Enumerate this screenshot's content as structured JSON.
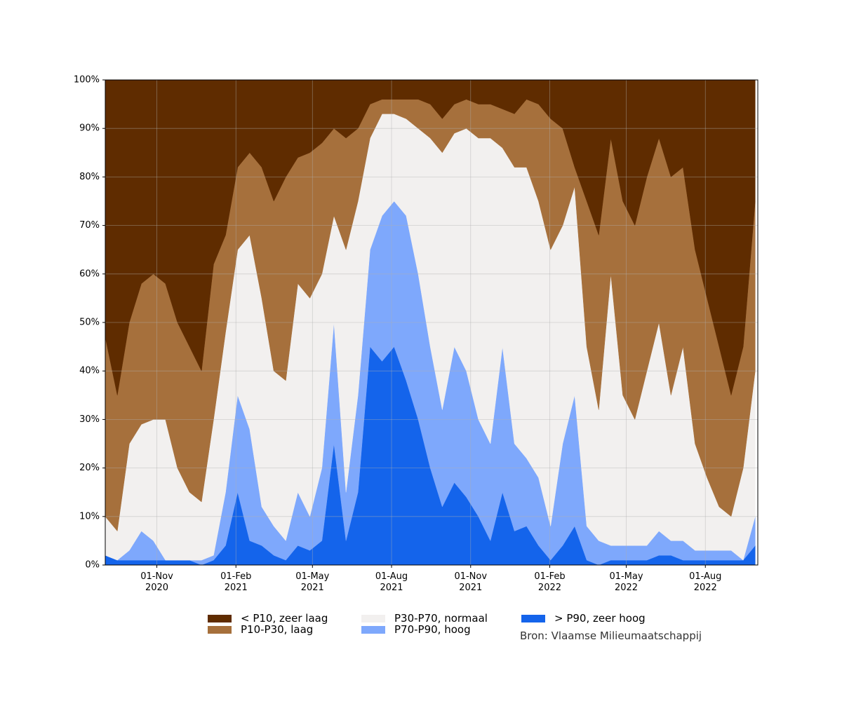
{
  "chart_data": {
    "type": "stacked_area",
    "x": [
      "2020-09-02",
      "2020-09-16",
      "2020-09-30",
      "2020-10-14",
      "2020-10-28",
      "2020-11-11",
      "2020-11-25",
      "2020-12-09",
      "2020-12-23",
      "2021-01-06",
      "2021-01-20",
      "2021-02-03",
      "2021-02-17",
      "2021-03-03",
      "2021-03-17",
      "2021-03-31",
      "2021-04-14",
      "2021-04-28",
      "2021-05-12",
      "2021-05-26",
      "2021-06-09",
      "2021-06-23",
      "2021-07-07",
      "2021-07-21",
      "2021-08-04",
      "2021-08-18",
      "2021-09-01",
      "2021-09-15",
      "2021-09-29",
      "2021-10-13",
      "2021-10-27",
      "2021-11-10",
      "2021-11-24",
      "2021-12-08",
      "2021-12-22",
      "2022-01-05",
      "2022-01-19",
      "2022-02-02",
      "2022-02-16",
      "2022-03-02",
      "2022-03-16",
      "2022-03-30",
      "2022-04-13",
      "2022-04-27",
      "2022-05-11",
      "2022-05-25",
      "2022-06-08",
      "2022-06-22",
      "2022-07-06",
      "2022-07-20",
      "2022-08-03",
      "2022-08-17",
      "2022-08-31",
      "2022-09-14",
      "2022-09-28"
    ],
    "series": [
      {
        "name": "< P10, zeer laag",
        "color": "#5f2c00",
        "values": [
          53,
          65,
          50,
          42,
          40,
          42,
          50,
          55,
          60,
          38,
          32,
          18,
          15,
          18,
          25,
          20,
          16,
          15,
          13,
          10,
          12,
          10,
          5,
          4,
          4,
          4,
          4,
          5,
          8,
          5,
          4,
          5,
          5,
          6,
          7,
          4,
          5,
          8,
          10,
          18,
          25,
          32,
          12,
          25,
          30,
          20,
          12,
          20,
          18,
          35,
          45,
          55,
          65,
          55,
          25
        ]
      },
      {
        "name": "P10-P30, laag",
        "color": "#a6703c",
        "values": [
          37,
          28,
          25,
          29,
          30,
          28,
          30,
          30,
          27,
          32,
          20,
          17,
          17,
          27,
          35,
          42,
          26,
          30,
          27,
          18,
          23,
          15,
          7,
          3,
          3,
          4,
          6,
          7,
          7,
          6,
          6,
          7,
          7,
          8,
          11,
          14,
          20,
          27,
          20,
          4,
          30,
          36,
          28,
          40,
          40,
          40,
          38,
          45,
          37,
          40,
          37,
          33,
          25,
          25,
          35
        ]
      },
      {
        "name": "P30-P70, normaal",
        "color": "#f2f0ef",
        "values": [
          8,
          6,
          22,
          22,
          25,
          29,
          19,
          14,
          12,
          28,
          33,
          30,
          40,
          43,
          32,
          33,
          43,
          45,
          40,
          22,
          50,
          40,
          23,
          21,
          18,
          20,
          30,
          43,
          53,
          44,
          50,
          58,
          63,
          41,
          57,
          60,
          57,
          57,
          45,
          43,
          37,
          27,
          56,
          31,
          26,
          36,
          43,
          30,
          40,
          22,
          15,
          9,
          7,
          19,
          30
        ]
      },
      {
        "name": "P70-P90, hoog",
        "color": "#7ea8fc",
        "values": [
          0,
          0,
          2,
          6,
          4,
          0,
          0,
          0,
          1,
          1,
          11,
          20,
          23,
          8,
          6,
          4,
          11,
          7,
          15,
          25,
          10,
          20,
          20,
          30,
          30,
          34,
          30,
          25,
          20,
          28,
          26,
          20,
          20,
          30,
          18,
          14,
          14,
          7,
          21,
          27,
          7,
          5,
          3,
          3,
          3,
          3,
          5,
          3,
          4,
          2,
          2,
          2,
          2,
          0,
          6
        ]
      },
      {
        "name": "> P90, zeer hoog",
        "color": "#1464eb",
        "values": [
          2,
          1,
          1,
          1,
          1,
          1,
          1,
          1,
          0,
          1,
          4,
          15,
          5,
          4,
          2,
          1,
          4,
          3,
          5,
          25,
          5,
          15,
          45,
          42,
          45,
          38,
          30,
          20,
          12,
          17,
          14,
          10,
          5,
          15,
          7,
          8,
          4,
          1,
          4,
          8,
          1,
          0,
          1,
          1,
          1,
          1,
          2,
          2,
          1,
          1,
          1,
          1,
          1,
          1,
          4
        ]
      }
    ],
    "xlim": [
      "2020-09-02",
      "2022-10-01"
    ],
    "xticks": [
      {
        "value": "2020-11-01",
        "label": "01-Nov\n2020"
      },
      {
        "value": "2021-02-01",
        "label": "01-Feb\n2021"
      },
      {
        "value": "2021-05-01",
        "label": "01-May\n2021"
      },
      {
        "value": "2021-08-01",
        "label": "01-Aug\n2021"
      },
      {
        "value": "2021-11-01",
        "label": "01-Nov\n2021"
      },
      {
        "value": "2022-02-01",
        "label": "01-Feb\n2022"
      },
      {
        "value": "2022-05-01",
        "label": "01-May\n2022"
      },
      {
        "value": "2022-08-01",
        "label": "01-Aug\n2022"
      }
    ],
    "ylim": [
      0,
      100
    ],
    "yticks": [
      {
        "value": 0,
        "label": "0%"
      },
      {
        "value": 10,
        "label": "10%"
      },
      {
        "value": 20,
        "label": "20%"
      },
      {
        "value": 30,
        "label": "30%"
      },
      {
        "value": 40,
        "label": "40%"
      },
      {
        "value": 50,
        "label": "50%"
      },
      {
        "value": 60,
        "label": "60%"
      },
      {
        "value": 70,
        "label": "70%"
      },
      {
        "value": 80,
        "label": "80%"
      },
      {
        "value": 90,
        "label": "90%"
      },
      {
        "value": 100,
        "label": "100%"
      }
    ],
    "grid": true,
    "legend": "bottom",
    "source": "Bron: Vlaamse Milieumaatschappij"
  }
}
